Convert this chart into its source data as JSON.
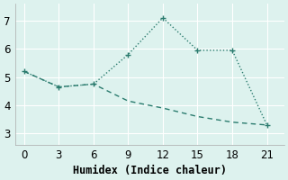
{
  "line1_x": [
    0,
    3,
    6,
    9,
    12,
    15,
    18,
    21
  ],
  "line1_y": [
    5.2,
    4.65,
    4.75,
    5.8,
    7.1,
    5.95,
    5.95,
    3.3
  ],
  "line2_x": [
    0,
    3,
    6,
    9,
    12,
    15,
    18,
    21
  ],
  "line2_y": [
    5.2,
    4.65,
    4.75,
    4.15,
    3.9,
    3.6,
    3.4,
    3.3
  ],
  "line_color": "#2a7b6e",
  "bg_color": "#ddf2ee",
  "grid_color": "#ffffff",
  "xlabel": "Humidex (Indice chaleur)",
  "xticks": [
    0,
    3,
    6,
    9,
    12,
    15,
    18,
    21
  ],
  "yticks": [
    3,
    4,
    5,
    6,
    7
  ],
  "xlim": [
    -0.8,
    22.5
  ],
  "ylim": [
    2.6,
    7.6
  ],
  "font_size": 8.5
}
